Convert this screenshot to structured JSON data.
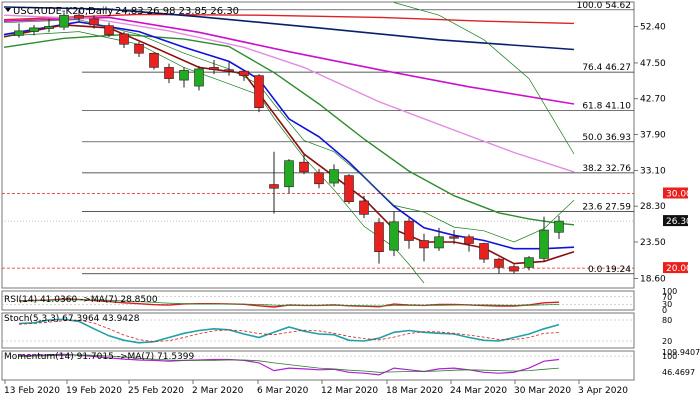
{
  "header": {
    "symbol": "USCRUDE-K20,Daily",
    "ohlc": "24.83 26.98 23.85 26.30"
  },
  "main_panel": {
    "fib_levels": [
      {
        "label": "100.0 54.62",
        "value": 54.62
      },
      {
        "label": "76.4 46.27",
        "value": 46.27
      },
      {
        "label": "61.8 41.10",
        "value": 41.1
      },
      {
        "label": "50.0 36.93",
        "value": 36.93
      },
      {
        "label": "38.2 32.76",
        "value": 32.76
      },
      {
        "label": "23.6 27.59",
        "value": 27.59
      },
      {
        "label": "0.0 19.24",
        "value": 19.24
      }
    ],
    "price_ticks": [
      "52.40",
      "47.50",
      "42.70",
      "37.90",
      "33.10",
      "28.30",
      "23.50",
      "18.60"
    ],
    "tick_values": [
      52.4,
      47.5,
      42.7,
      37.9,
      33.1,
      28.3,
      23.5,
      18.6
    ],
    "badges": [
      {
        "text": "30.00",
        "value": 30.0,
        "color": "#e8211e",
        "kind": "dashed-level"
      },
      {
        "text": "26.30",
        "value": 26.3,
        "color": "#111111",
        "kind": "price"
      },
      {
        "text": "20.00",
        "value": 20.0,
        "color": "#e8211e",
        "kind": "dashed-level"
      }
    ]
  },
  "rsi_panel": {
    "label": "RSI(14) 41.0360 ->MA(7) 28.8500",
    "ticks": [
      "100",
      "70",
      "30",
      "0"
    ]
  },
  "stoch_panel": {
    "label": "Stoch(5,3,3) 67.3964 43.9428",
    "ticks": [
      "80",
      "20"
    ]
  },
  "momentum_panel": {
    "label": "Momentum(14) 91.7015 ->MA(7) 71.5399",
    "ticks": [
      "109.9407",
      "100",
      "46.4697"
    ]
  },
  "x_axis": {
    "labels": [
      "13 Feb 2020",
      "19 Feb 2020",
      "25 Feb 2020",
      "2 Mar 2020",
      "6 Mar 2020",
      "12 Mar 2020",
      "18 Mar 2020",
      "24 Mar 2020",
      "30 Mar 2020",
      "3 Apr 2020"
    ]
  },
  "colors": {
    "bull": "#22aa22",
    "bear": "#e8211e",
    "wick": "#222222",
    "ma_red": "#8b0d0d",
    "ma_blue": "#1111dd",
    "ma_green": "#2e8b2e",
    "ma_thin_green": "#1a7a1a",
    "ma_magenta": "#cc11cc",
    "ma_pink": "#e58ae0",
    "ma_navy": "#0a1f6b",
    "ma_long_red": "#dd2222",
    "fib_line": "#222222",
    "indicator_main": "#20a0a8",
    "indicator_signal": "#d02020",
    "momentum_line": "#b020d0",
    "momentum_signal": "#2a7a2a",
    "rsi_fill": "#ffb0b0"
  },
  "chart_data": {
    "type": "candlestick",
    "candles": [
      {
        "date": "13 Feb 2020",
        "open": 51.2,
        "high": 52.8,
        "low": 50.9,
        "close": 51.8
      },
      {
        "date": "14 Feb 2020",
        "open": 51.7,
        "high": 52.6,
        "low": 51.2,
        "close": 52.2
      },
      {
        "date": "17 Feb 2020",
        "open": 52.1,
        "high": 53.4,
        "low": 51.6,
        "close": 52.4
      },
      {
        "date": "18 Feb 2020",
        "open": 52.3,
        "high": 54.3,
        "low": 51.9,
        "close": 53.9
      },
      {
        "date": "19 Feb 2020",
        "open": 53.9,
        "high": 54.6,
        "low": 53.0,
        "close": 53.5
      },
      {
        "date": "20 Feb 2020",
        "open": 53.4,
        "high": 53.9,
        "low": 52.1,
        "close": 52.6
      },
      {
        "date": "21 Feb 2020",
        "open": 52.5,
        "high": 52.9,
        "low": 51.0,
        "close": 51.3
      },
      {
        "date": "24 Feb 2020",
        "open": 51.4,
        "high": 51.7,
        "low": 49.5,
        "close": 50.0
      },
      {
        "date": "25 Feb 2020",
        "open": 50.0,
        "high": 50.3,
        "low": 48.3,
        "close": 48.8
      },
      {
        "date": "26 Feb 2020",
        "open": 48.8,
        "high": 48.9,
        "low": 46.6,
        "close": 46.9
      },
      {
        "date": "27 Feb 2020",
        "open": 46.9,
        "high": 47.4,
        "low": 44.8,
        "close": 45.4
      },
      {
        "date": "28 Feb 2020",
        "open": 45.2,
        "high": 46.9,
        "low": 44.2,
        "close": 46.5
      },
      {
        "date": "2 Mar 2020",
        "open": 44.4,
        "high": 47.1,
        "low": 43.8,
        "close": 46.7
      },
      {
        "date": "3 Mar 2020",
        "open": 46.9,
        "high": 47.9,
        "low": 46.0,
        "close": 46.6
      },
      {
        "date": "4 Mar 2020",
        "open": 46.6,
        "high": 47.6,
        "low": 45.8,
        "close": 46.4
      },
      {
        "date": "5 Mar 2020",
        "open": 46.4,
        "high": 46.5,
        "low": 45.1,
        "close": 45.8
      },
      {
        "date": "6 Mar 2020",
        "open": 45.8,
        "high": 46.0,
        "low": 40.9,
        "close": 41.5
      },
      {
        "date": "9 Mar 2020",
        "open": 31.2,
        "high": 35.6,
        "low": 27.3,
        "close": 30.7
      },
      {
        "date": "10 Mar 2020",
        "open": 30.9,
        "high": 34.6,
        "low": 30.0,
        "close": 34.4
      },
      {
        "date": "11 Mar 2020",
        "open": 34.2,
        "high": 35.3,
        "low": 32.6,
        "close": 32.9
      },
      {
        "date": "12 Mar 2020",
        "open": 32.8,
        "high": 33.3,
        "low": 30.7,
        "close": 31.3
      },
      {
        "date": "13 Mar 2020",
        "open": 31.4,
        "high": 33.9,
        "low": 30.9,
        "close": 33.2
      },
      {
        "date": "16 Mar 2020",
        "open": 32.4,
        "high": 32.6,
        "low": 28.6,
        "close": 28.9
      },
      {
        "date": "17 Mar 2020",
        "open": 29.0,
        "high": 29.7,
        "low": 26.7,
        "close": 27.2
      },
      {
        "date": "18 Mar 2020",
        "open": 26.1,
        "high": 26.7,
        "low": 20.6,
        "close": 22.2
      },
      {
        "date": "19 Mar 2020",
        "open": 22.4,
        "high": 27.6,
        "low": 21.6,
        "close": 26.2
      },
      {
        "date": "20 Mar 2020",
        "open": 26.3,
        "high": 26.7,
        "low": 22.6,
        "close": 23.7
      },
      {
        "date": "23 Mar 2020",
        "open": 23.7,
        "high": 24.6,
        "low": 20.9,
        "close": 22.7
      },
      {
        "date": "24 Mar 2020",
        "open": 22.7,
        "high": 25.4,
        "low": 22.3,
        "close": 24.2
      },
      {
        "date": "25 Mar 2020",
        "open": 24.2,
        "high": 25.1,
        "low": 23.2,
        "close": 24.1
      },
      {
        "date": "26 Mar 2020",
        "open": 24.2,
        "high": 24.5,
        "low": 22.2,
        "close": 23.3
      },
      {
        "date": "27 Mar 2020",
        "open": 23.3,
        "high": 23.4,
        "low": 20.7,
        "close": 21.2
      },
      {
        "date": "30 Mar 2020",
        "open": 21.2,
        "high": 21.4,
        "low": 19.3,
        "close": 20.1
      },
      {
        "date": "31 Mar 2020",
        "open": 20.2,
        "high": 20.5,
        "low": 19.3,
        "close": 19.6
      },
      {
        "date": "1 Apr 2020",
        "open": 20.1,
        "high": 21.6,
        "low": 19.7,
        "close": 21.4
      },
      {
        "date": "2 Apr 2020",
        "open": 21.3,
        "high": 26.9,
        "low": 20.9,
        "close": 25.1
      },
      {
        "date": "3 Apr 2020",
        "open": 24.8,
        "high": 27.0,
        "low": 23.9,
        "close": 26.3
      }
    ]
  }
}
